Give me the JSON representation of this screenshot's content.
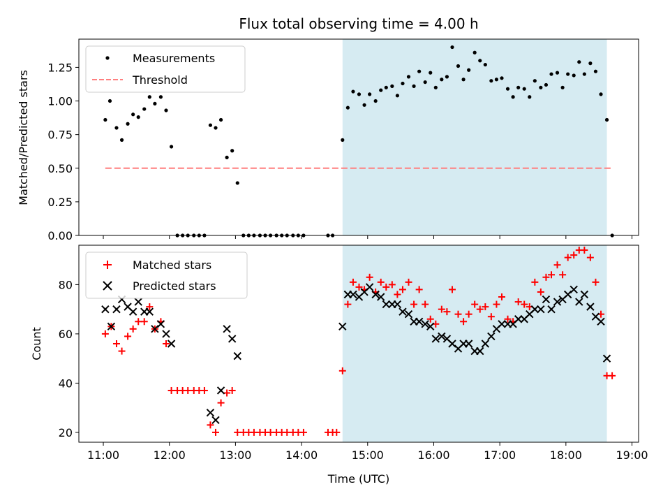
{
  "chart_data": [
    {
      "type": "scatter",
      "title": "Flux total observing time = 4.00 h",
      "ylabel": "Matched/Predicted stars",
      "xlabel": "",
      "xlim": [
        10.63,
        19.1
      ],
      "ylim": [
        0.0,
        1.46
      ],
      "x_ticks": [
        11,
        12,
        13,
        14,
        15,
        16,
        17,
        18,
        19
      ],
      "y_ticks": [
        "0.00",
        "0.25",
        "0.50",
        "0.75",
        "1.00",
        "1.25"
      ],
      "legend_position": "top-left",
      "shaded_region": {
        "x": [
          14.62,
          18.62
        ],
        "color": "#add8e6"
      },
      "series": [
        {
          "name": "Measurements",
          "marker": "dot",
          "color": "#000000",
          "points": [
            [
              11.03,
              0.86
            ],
            [
              11.1,
              1.0
            ],
            [
              11.2,
              0.8
            ],
            [
              11.28,
              0.71
            ],
            [
              11.37,
              0.83
            ],
            [
              11.45,
              0.9
            ],
            [
              11.53,
              0.88
            ],
            [
              11.62,
              0.94
            ],
            [
              11.7,
              1.03
            ],
            [
              11.78,
              0.98
            ],
            [
              11.87,
              1.03
            ],
            [
              11.95,
              0.93
            ],
            [
              12.03,
              0.66
            ],
            [
              12.12,
              0.0
            ],
            [
              12.2,
              0.0
            ],
            [
              12.28,
              0.0
            ],
            [
              12.37,
              0.0
            ],
            [
              12.45,
              0.0
            ],
            [
              12.53,
              0.0
            ],
            [
              12.62,
              0.82
            ],
            [
              12.7,
              0.8
            ],
            [
              12.78,
              0.86
            ],
            [
              12.87,
              0.58
            ],
            [
              12.95,
              0.63
            ],
            [
              13.03,
              0.39
            ],
            [
              13.12,
              0.0
            ],
            [
              13.2,
              0.0
            ],
            [
              13.28,
              0.0
            ],
            [
              13.37,
              0.0
            ],
            [
              13.45,
              0.0
            ],
            [
              13.53,
              0.0
            ],
            [
              13.62,
              0.0
            ],
            [
              13.7,
              0.0
            ],
            [
              13.78,
              0.0
            ],
            [
              13.87,
              0.0
            ],
            [
              13.95,
              0.0
            ],
            [
              14.03,
              0.0
            ],
            [
              14.4,
              0.0
            ],
            [
              14.47,
              0.0
            ],
            [
              14.62,
              0.71
            ],
            [
              14.7,
              0.95
            ],
            [
              14.78,
              1.07
            ],
            [
              14.87,
              1.05
            ],
            [
              14.95,
              0.97
            ],
            [
              15.03,
              1.05
            ],
            [
              15.12,
              1.0
            ],
            [
              15.2,
              1.08
            ],
            [
              15.28,
              1.1
            ],
            [
              15.37,
              1.11
            ],
            [
              15.45,
              1.04
            ],
            [
              15.53,
              1.13
            ],
            [
              15.62,
              1.18
            ],
            [
              15.7,
              1.11
            ],
            [
              15.78,
              1.22
            ],
            [
              15.87,
              1.14
            ],
            [
              15.95,
              1.21
            ],
            [
              16.03,
              1.1
            ],
            [
              16.12,
              1.16
            ],
            [
              16.2,
              1.18
            ],
            [
              16.28,
              1.4
            ],
            [
              16.37,
              1.26
            ],
            [
              16.45,
              1.16
            ],
            [
              16.53,
              1.23
            ],
            [
              16.62,
              1.36
            ],
            [
              16.7,
              1.3
            ],
            [
              16.78,
              1.27
            ],
            [
              16.87,
              1.15
            ],
            [
              16.95,
              1.16
            ],
            [
              17.03,
              1.17
            ],
            [
              17.12,
              1.09
            ],
            [
              17.2,
              1.03
            ],
            [
              17.28,
              1.1
            ],
            [
              17.37,
              1.09
            ],
            [
              17.45,
              1.03
            ],
            [
              17.53,
              1.15
            ],
            [
              17.62,
              1.1
            ],
            [
              17.7,
              1.12
            ],
            [
              17.78,
              1.2
            ],
            [
              17.87,
              1.21
            ],
            [
              17.95,
              1.1
            ],
            [
              18.03,
              1.2
            ],
            [
              18.12,
              1.19
            ],
            [
              18.2,
              1.29
            ],
            [
              18.28,
              1.2
            ],
            [
              18.37,
              1.28
            ],
            [
              18.45,
              1.22
            ],
            [
              18.53,
              1.05
            ],
            [
              18.62,
              0.86
            ],
            [
              18.7,
              0.0
            ]
          ]
        },
        {
          "name": "Threshold",
          "marker": "dashed-line",
          "color": "#ff7f7f",
          "points": [
            [
              11.03,
              0.5
            ],
            [
              18.7,
              0.5
            ]
          ]
        }
      ]
    },
    {
      "type": "scatter",
      "title": "",
      "ylabel": "Count",
      "xlabel": "Time (UTC)",
      "xlim": [
        10.63,
        19.1
      ],
      "ylim": [
        16,
        96
      ],
      "x_ticks": [
        11,
        12,
        13,
        14,
        15,
        16,
        17,
        18,
        19
      ],
      "x_tick_labels": [
        "11:00",
        "12:00",
        "13:00",
        "14:00",
        "15:00",
        "16:00",
        "17:00",
        "18:00",
        "19:00"
      ],
      "y_ticks": [
        "20",
        "40",
        "60",
        "80"
      ],
      "legend_position": "top-left",
      "shaded_region": {
        "x": [
          14.62,
          18.62
        ],
        "color": "#add8e6"
      },
      "series": [
        {
          "name": "Matched stars",
          "marker": "plus",
          "color": "#ff0000",
          "points": [
            [
              11.03,
              60
            ],
            [
              11.12,
              63
            ],
            [
              11.2,
              56
            ],
            [
              11.28,
              53
            ],
            [
              11.37,
              59
            ],
            [
              11.45,
              62
            ],
            [
              11.53,
              65
            ],
            [
              11.62,
              65
            ],
            [
              11.7,
              71
            ],
            [
              11.78,
              62
            ],
            [
              11.87,
              65
            ],
            [
              11.95,
              56
            ],
            [
              12.03,
              37
            ],
            [
              12.12,
              37
            ],
            [
              12.2,
              37
            ],
            [
              12.28,
              37
            ],
            [
              12.37,
              37
            ],
            [
              12.45,
              37
            ],
            [
              12.53,
              37
            ],
            [
              12.62,
              23
            ],
            [
              12.7,
              20
            ],
            [
              12.78,
              32
            ],
            [
              12.87,
              36
            ],
            [
              12.95,
              37
            ],
            [
              13.03,
              20
            ],
            [
              13.12,
              20
            ],
            [
              13.2,
              20
            ],
            [
              13.28,
              20
            ],
            [
              13.37,
              20
            ],
            [
              13.45,
              20
            ],
            [
              13.53,
              20
            ],
            [
              13.62,
              20
            ],
            [
              13.7,
              20
            ],
            [
              13.78,
              20
            ],
            [
              13.87,
              20
            ],
            [
              13.95,
              20
            ],
            [
              14.03,
              20
            ],
            [
              14.4,
              20
            ],
            [
              14.47,
              20
            ],
            [
              14.53,
              20
            ],
            [
              14.62,
              45
            ],
            [
              14.7,
              72
            ],
            [
              14.78,
              81
            ],
            [
              14.87,
              79
            ],
            [
              14.95,
              78
            ],
            [
              15.03,
              83
            ],
            [
              15.12,
              77
            ],
            [
              15.2,
              81
            ],
            [
              15.28,
              79
            ],
            [
              15.37,
              80
            ],
            [
              15.45,
              76
            ],
            [
              15.53,
              78
            ],
            [
              15.62,
              81
            ],
            [
              15.7,
              72
            ],
            [
              15.78,
              78
            ],
            [
              15.87,
              72
            ],
            [
              15.95,
              66
            ],
            [
              16.03,
              64
            ],
            [
              16.12,
              70
            ],
            [
              16.2,
              69
            ],
            [
              16.28,
              78
            ],
            [
              16.37,
              68
            ],
            [
              16.45,
              65
            ],
            [
              16.53,
              68
            ],
            [
              16.62,
              72
            ],
            [
              16.7,
              70
            ],
            [
              16.78,
              71
            ],
            [
              16.87,
              67
            ],
            [
              16.95,
              72
            ],
            [
              17.03,
              75
            ],
            [
              17.12,
              66
            ],
            [
              17.2,
              65
            ],
            [
              17.28,
              73
            ],
            [
              17.37,
              72
            ],
            [
              17.45,
              71
            ],
            [
              17.53,
              81
            ],
            [
              17.62,
              77
            ],
            [
              17.7,
              83
            ],
            [
              17.78,
              84
            ],
            [
              17.87,
              88
            ],
            [
              17.95,
              84
            ],
            [
              18.03,
              91
            ],
            [
              18.12,
              92
            ],
            [
              18.2,
              94
            ],
            [
              18.28,
              94
            ],
            [
              18.37,
              91
            ],
            [
              18.45,
              81
            ],
            [
              18.53,
              68
            ],
            [
              18.62,
              43
            ],
            [
              18.7,
              43
            ]
          ]
        },
        {
          "name": "Predicted stars",
          "marker": "x",
          "color": "#000000",
          "points": [
            [
              11.03,
              70
            ],
            [
              11.12,
              63
            ],
            [
              11.2,
              70
            ],
            [
              11.28,
              74
            ],
            [
              11.37,
              71
            ],
            [
              11.45,
              69
            ],
            [
              11.53,
              73
            ],
            [
              11.62,
              69
            ],
            [
              11.7,
              69
            ],
            [
              11.78,
              62
            ],
            [
              11.87,
              64
            ],
            [
              11.95,
              60
            ],
            [
              12.03,
              56
            ],
            [
              12.62,
              28
            ],
            [
              12.7,
              25
            ],
            [
              12.78,
              37
            ],
            [
              12.87,
              62
            ],
            [
              12.95,
              58
            ],
            [
              13.03,
              51
            ],
            [
              14.62,
              63
            ],
            [
              14.7,
              76
            ],
            [
              14.78,
              76
            ],
            [
              14.87,
              75
            ],
            [
              14.95,
              77
            ],
            [
              15.03,
              79
            ],
            [
              15.12,
              76
            ],
            [
              15.2,
              75
            ],
            [
              15.28,
              72
            ],
            [
              15.37,
              72
            ],
            [
              15.45,
              72
            ],
            [
              15.53,
              69
            ],
            [
              15.62,
              68
            ],
            [
              15.7,
              65
            ],
            [
              15.78,
              65
            ],
            [
              15.87,
              64
            ],
            [
              15.95,
              63
            ],
            [
              16.03,
              58
            ],
            [
              16.12,
              59
            ],
            [
              16.2,
              58
            ],
            [
              16.28,
              56
            ],
            [
              16.37,
              54
            ],
            [
              16.45,
              56
            ],
            [
              16.53,
              56
            ],
            [
              16.62,
              53
            ],
            [
              16.7,
              53
            ],
            [
              16.78,
              56
            ],
            [
              16.87,
              59
            ],
            [
              16.95,
              62
            ],
            [
              17.03,
              64
            ],
            [
              17.12,
              64
            ],
            [
              17.2,
              64
            ],
            [
              17.28,
              66
            ],
            [
              17.37,
              66
            ],
            [
              17.45,
              68
            ],
            [
              17.53,
              70
            ],
            [
              17.62,
              70
            ],
            [
              17.7,
              74
            ],
            [
              17.78,
              70
            ],
            [
              17.87,
              73
            ],
            [
              17.95,
              74
            ],
            [
              18.03,
              76
            ],
            [
              18.12,
              78
            ],
            [
              18.2,
              73
            ],
            [
              18.28,
              76
            ],
            [
              18.37,
              71
            ],
            [
              18.45,
              67
            ],
            [
              18.53,
              65
            ],
            [
              18.62,
              50
            ]
          ]
        }
      ]
    }
  ]
}
